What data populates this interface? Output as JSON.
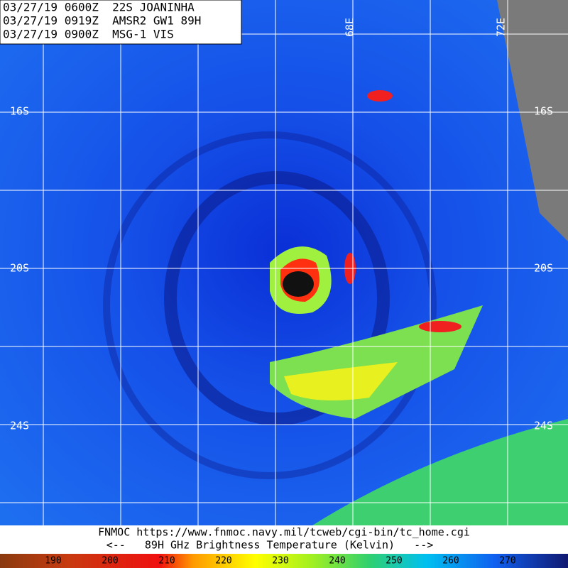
{
  "header": {
    "lines": [
      "03/27/19 0600Z  22S JOANINHA",
      "03/27/19 0919Z  AMSR2 GW1 89H",
      "03/27/19 0900Z  MSG-1 VIS"
    ]
  },
  "grid_labels": {
    "latitudes": [
      "16S",
      "20S",
      "24S"
    ],
    "longitudes": [
      "68E",
      "72E"
    ]
  },
  "footer": {
    "source": "FNMOC https://www.fnmoc.navy.mil/tcweb/cgi-bin/tc_home.cgi",
    "legend_title": "<--   89H GHz Brightness Temperature (Kelvin)   -->"
  },
  "colorbar": {
    "ticks": [
      190,
      200,
      210,
      220,
      230,
      240,
      250,
      260,
      270
    ]
  }
}
